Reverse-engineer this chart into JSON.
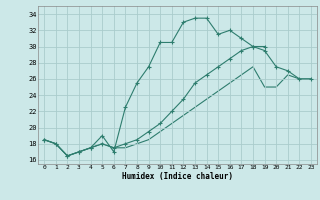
{
  "xlabel": "Humidex (Indice chaleur)",
  "ylabel": "",
  "background_color": "#cce8e8",
  "grid_color": "#aacccc",
  "line_color": "#2e7d6e",
  "xlim": [
    -0.5,
    23.5
  ],
  "ylim": [
    15.5,
    35.0
  ],
  "xticks": [
    0,
    1,
    2,
    3,
    4,
    5,
    6,
    7,
    8,
    9,
    10,
    11,
    12,
    13,
    14,
    15,
    16,
    17,
    18,
    19,
    20,
    21,
    22,
    23
  ],
  "yticks": [
    16,
    18,
    20,
    22,
    24,
    26,
    28,
    30,
    32,
    34
  ],
  "line1_x": [
    0,
    1,
    2,
    3,
    4,
    5,
    6,
    7,
    8,
    9,
    10,
    11,
    12,
    13,
    14,
    15,
    16,
    17,
    18,
    19
  ],
  "line1_y": [
    18.5,
    18.0,
    16.5,
    17.0,
    17.5,
    19.0,
    17.0,
    22.5,
    25.5,
    27.5,
    30.5,
    30.5,
    33.0,
    33.5,
    33.5,
    31.5,
    32.0,
    31.0,
    30.0,
    30.0
  ],
  "line2_x": [
    0,
    1,
    2,
    3,
    4,
    5,
    6,
    7,
    8,
    9,
    10,
    11,
    12,
    13,
    14,
    15,
    16,
    17,
    18,
    19,
    20,
    21,
    22,
    23
  ],
  "line2_y": [
    18.5,
    18.0,
    16.5,
    17.0,
    17.5,
    18.0,
    17.5,
    18.0,
    18.5,
    19.5,
    20.5,
    22.0,
    23.5,
    25.5,
    26.5,
    27.5,
    28.5,
    29.5,
    30.0,
    29.5,
    27.5,
    27.0,
    26.0,
    26.0
  ],
  "line3_x": [
    0,
    1,
    2,
    3,
    4,
    5,
    6,
    7,
    8,
    9,
    10,
    11,
    12,
    13,
    14,
    15,
    16,
    17,
    18,
    19,
    20,
    21,
    22,
    23
  ],
  "line3_y": [
    18.5,
    18.0,
    16.5,
    17.0,
    17.5,
    18.0,
    17.5,
    17.5,
    18.0,
    18.5,
    19.5,
    20.5,
    21.5,
    22.5,
    23.5,
    24.5,
    25.5,
    26.5,
    27.5,
    25.0,
    25.0,
    26.5,
    26.0,
    26.0
  ]
}
